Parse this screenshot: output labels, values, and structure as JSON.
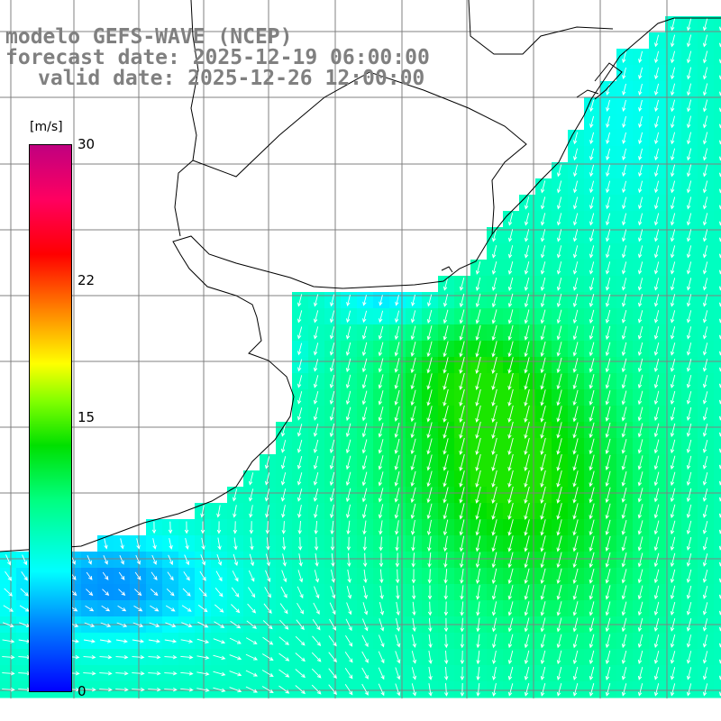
{
  "titles": {
    "line1": "modelo GEFS-WAVE (NCEP)",
    "line2": "forecast date: 2025-12-19 06:00:00",
    "line3": "valid date: 2025-12-26 12:00:00"
  },
  "colorbar": {
    "units": "[m/s]",
    "ticks": [
      "30",
      "22",
      "15",
      "0"
    ],
    "min": 0,
    "max": 30,
    "colors": [
      "#0000ff",
      "#0080ff",
      "#00ffff",
      "#00ff80",
      "#00e000",
      "#80ff00",
      "#ffff00",
      "#ff8000",
      "#ff0000",
      "#c00080"
    ]
  },
  "map": {
    "land_color": "#ffffff",
    "grid_color": "#808080",
    "arrow_color": "#ffffff",
    "field": "wind speed and direction"
  }
}
